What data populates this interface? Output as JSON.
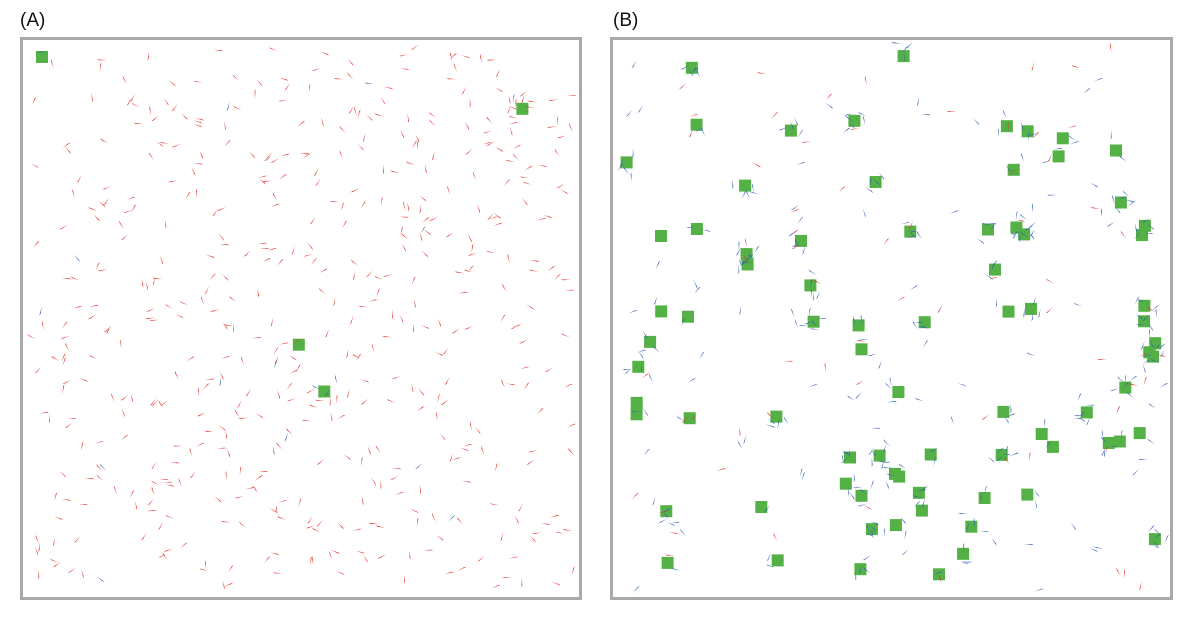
{
  "panels": [
    {
      "label": "(A)",
      "counts": {
        "red_agents": 505,
        "blue_agents": 19,
        "green_patches": 4
      }
    },
    {
      "label": "(B)",
      "counts": {
        "red_agents": 68,
        "blue_agents": 320,
        "green_patches": 79
      }
    }
  ],
  "colors": {
    "red_agent": "#e4312b",
    "blue_agent": "#2f5fb3",
    "green_patch": "#54b146",
    "frame": "#a9a9a9"
  },
  "icons": {
    "agent": "triangle-arrow-icon",
    "patch": "green-square-icon"
  }
}
